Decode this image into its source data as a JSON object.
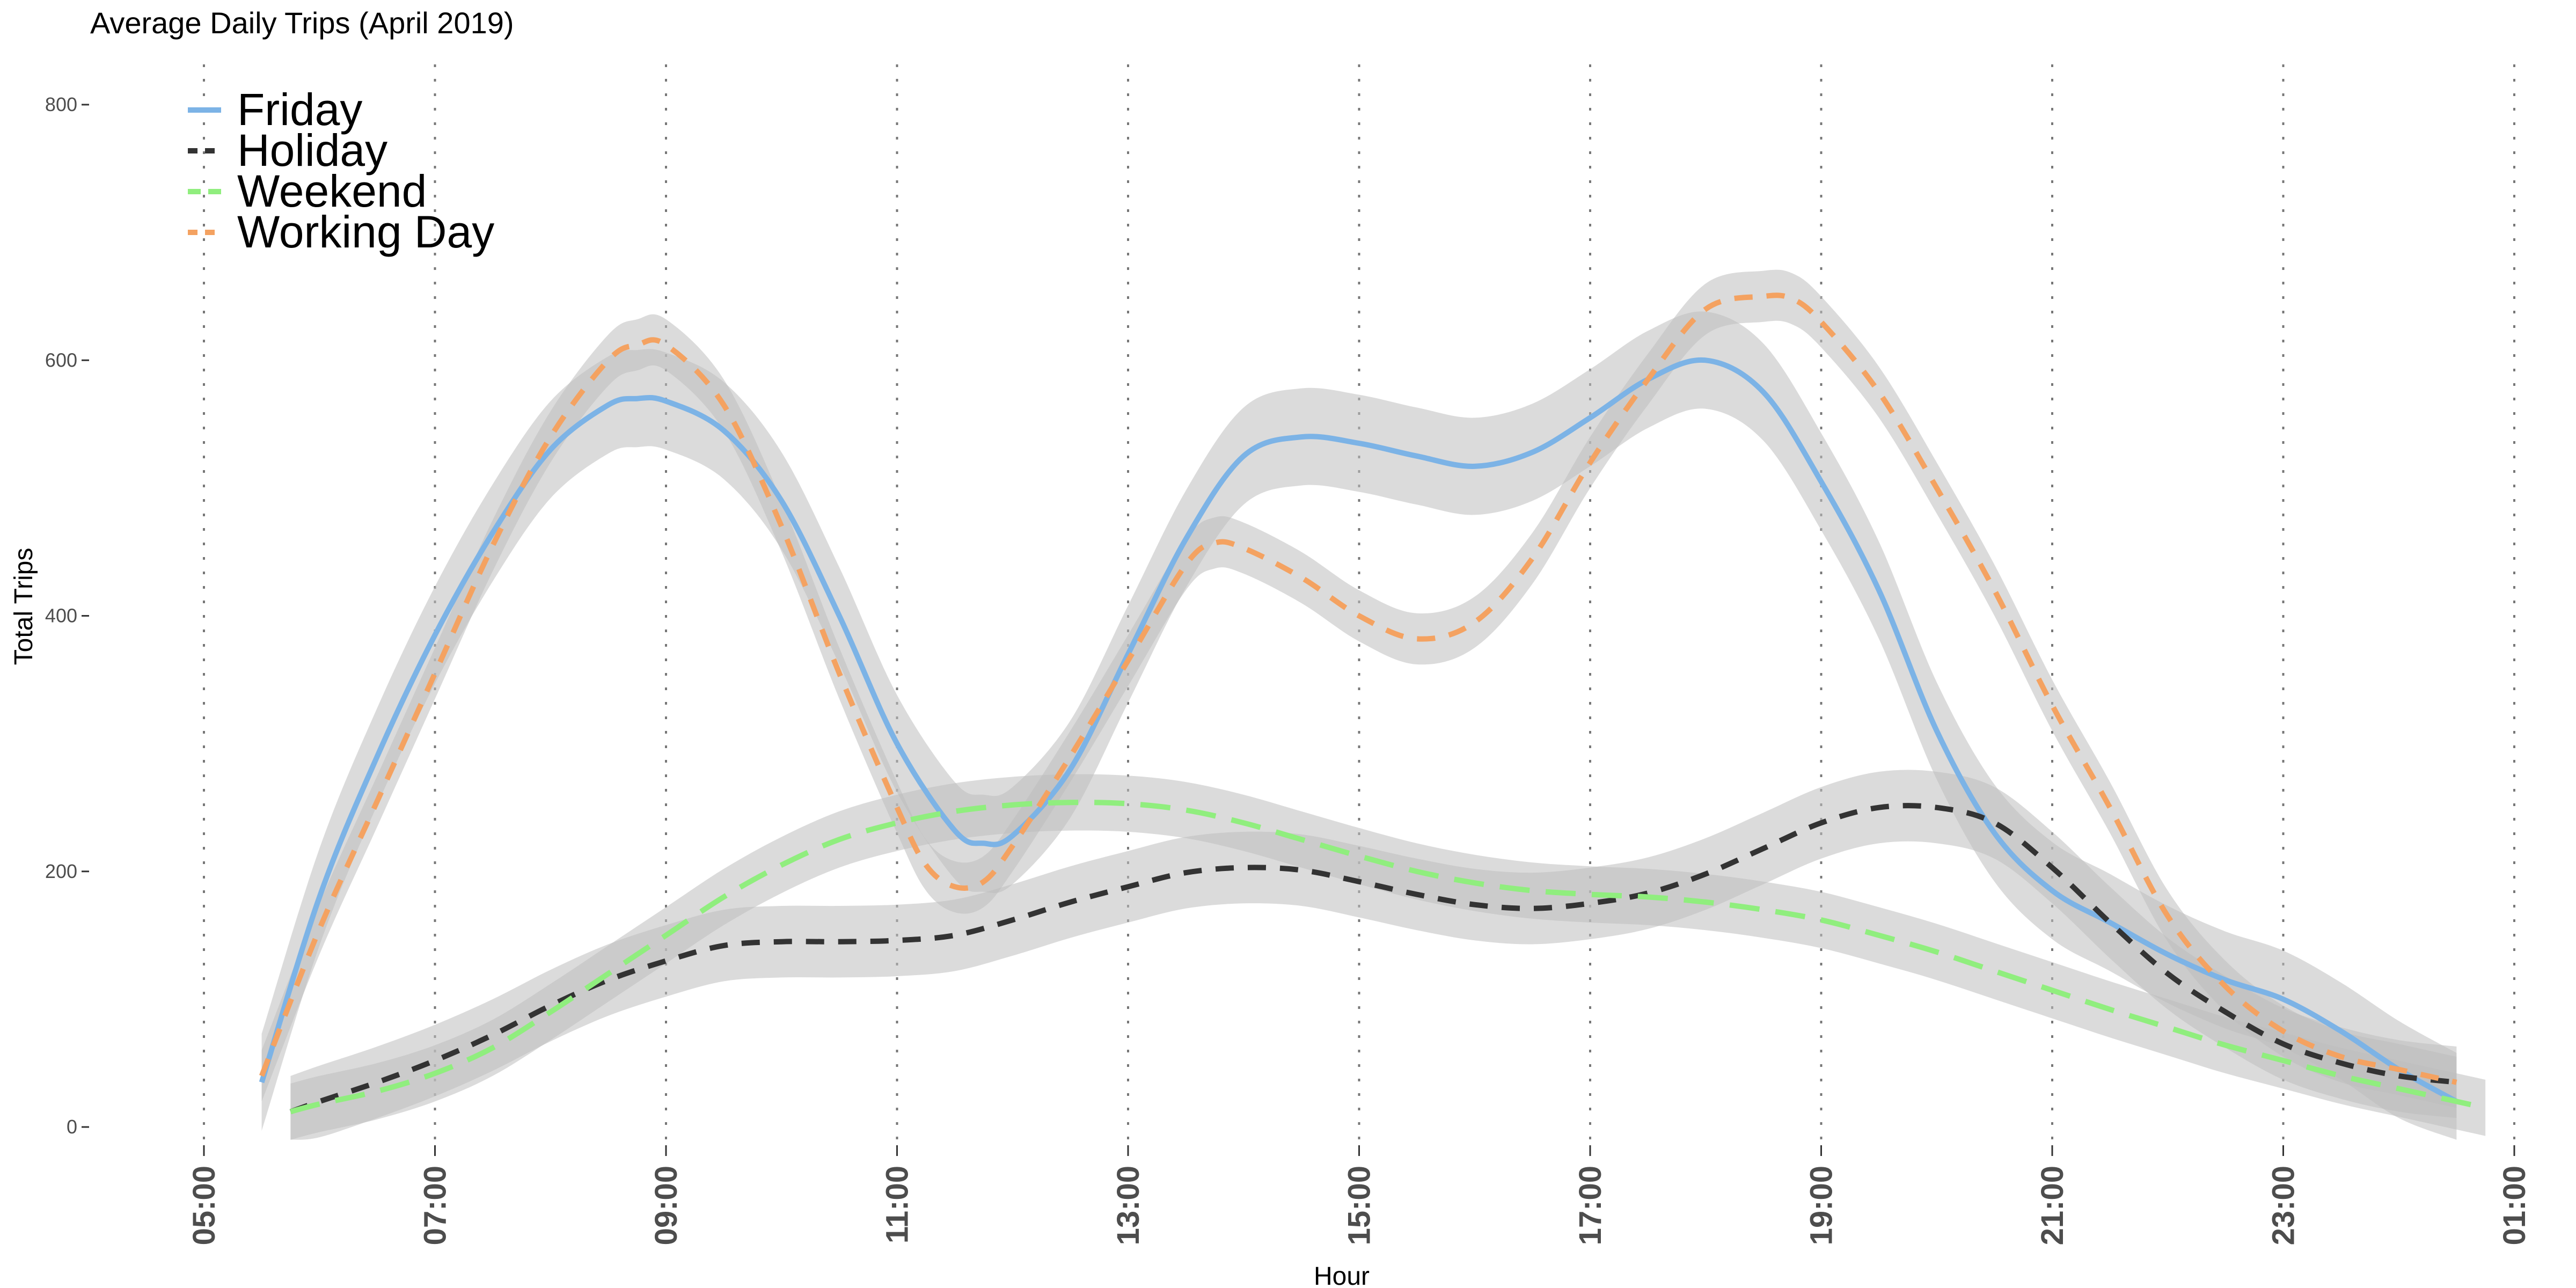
{
  "chart_data": {
    "type": "line",
    "title": "Average Daily Trips (April 2019)",
    "xlabel": "Hour",
    "ylabel": "Total Trips",
    "xlim": [
      5,
      25
    ],
    "ylim": [
      0,
      800
    ],
    "x_ticks": [
      5,
      7,
      9,
      11,
      13,
      15,
      17,
      19,
      21,
      23,
      25
    ],
    "x_tick_labels": [
      "05:00",
      "07:00",
      "09:00",
      "11:00",
      "13:00",
      "15:00",
      "17:00",
      "19:00",
      "21:00",
      "23:00",
      "01:00"
    ],
    "y_ticks": [
      0,
      200,
      400,
      600,
      800
    ],
    "y_tick_labels": [
      "0",
      "200",
      "400",
      "600",
      "800"
    ],
    "grid": "vertical dotted at hour ticks",
    "legend_position": "top-left",
    "band_color": "#bdbdbd",
    "series": [
      {
        "name": "Friday",
        "color": "#7cb3e6",
        "dash": "solid",
        "x": [
          5.5,
          6,
          6.5,
          7,
          7.5,
          8,
          8.5,
          8.75,
          9,
          9.5,
          10,
          10.5,
          11,
          11.5,
          11.75,
          12,
          12.5,
          13,
          13.5,
          14,
          14.5,
          15,
          15.5,
          16,
          16.5,
          17,
          17.5,
          18,
          18.5,
          19,
          19.5,
          20,
          20.5,
          21,
          21.5,
          22,
          22.5,
          23,
          23.5,
          24,
          24.5
        ],
        "y": [
          35,
          180,
          290,
          385,
          465,
          530,
          565,
          570,
          568,
          545,
          490,
          400,
          300,
          232,
          222,
          228,
          280,
          370,
          460,
          525,
          540,
          535,
          525,
          517,
          528,
          555,
          585,
          600,
          575,
          505,
          420,
          310,
          230,
          185,
          160,
          135,
          115,
          100,
          75,
          45,
          20
        ]
      },
      {
        "name": "Holiday",
        "color": "#333333",
        "dash": "dashed",
        "x": [
          5.75,
          6,
          6.5,
          7,
          7.5,
          8,
          8.5,
          9,
          9.5,
          10,
          10.5,
          11,
          11.5,
          12,
          12.5,
          13,
          13.5,
          14,
          14.5,
          15,
          15.5,
          16,
          16.5,
          17,
          17.5,
          18,
          18.5,
          19,
          19.5,
          20,
          20.5,
          21,
          21.5,
          22,
          22.5,
          23,
          23.5,
          24,
          24.5
        ],
        "y": [
          12,
          20,
          35,
          52,
          72,
          95,
          115,
          130,
          142,
          145,
          145,
          146,
          150,
          162,
          176,
          188,
          199,
          203,
          201,
          192,
          182,
          174,
          171,
          175,
          183,
          198,
          218,
          238,
          250,
          250,
          238,
          203,
          160,
          120,
          90,
          65,
          50,
          40,
          35
        ]
      },
      {
        "name": "Weekend",
        "color": "#90ee7e",
        "dash": "longdash",
        "x": [
          5.75,
          6,
          6.5,
          7,
          7.5,
          8,
          8.5,
          9,
          9.5,
          10,
          10.5,
          11,
          11.5,
          12,
          12.5,
          13,
          13.5,
          14,
          14.5,
          15,
          15.5,
          16,
          16.5,
          17,
          17.5,
          18,
          18.5,
          19,
          19.5,
          20,
          20.5,
          21,
          21.5,
          22,
          22.5,
          23,
          23.5,
          24,
          24.5,
          24.75
        ],
        "y": [
          12,
          18,
          28,
          42,
          62,
          90,
          120,
          150,
          180,
          205,
          225,
          238,
          247,
          252,
          254,
          253,
          248,
          238,
          225,
          212,
          200,
          191,
          185,
          182,
          180,
          176,
          170,
          162,
          150,
          137,
          122,
          107,
          92,
          78,
          64,
          52,
          40,
          30,
          20,
          15
        ]
      },
      {
        "name": "Working Day",
        "color": "#f4a261",
        "dash": "dashed",
        "x": [
          5.5,
          6,
          6.5,
          7,
          7.5,
          8,
          8.5,
          8.75,
          9,
          9.5,
          10,
          10.5,
          11,
          11.25,
          11.5,
          11.75,
          12,
          12.5,
          13,
          13.5,
          13.75,
          14,
          14.5,
          15,
          15.5,
          16,
          16.5,
          17,
          17.5,
          18,
          18.5,
          18.75,
          19,
          19.5,
          20,
          20.5,
          21,
          21.5,
          22,
          22.5,
          23,
          23.5,
          24,
          24.5
        ],
        "y": [
          40,
          155,
          255,
          355,
          455,
          540,
          600,
          612,
          612,
          565,
          470,
          355,
          250,
          205,
          188,
          192,
          220,
          290,
          365,
          440,
          457,
          453,
          430,
          400,
          382,
          395,
          445,
          520,
          585,
          640,
          650,
          648,
          630,
          575,
          500,
          420,
          330,
          250,
          165,
          110,
          75,
          55,
          45,
          35
        ]
      }
    ]
  }
}
